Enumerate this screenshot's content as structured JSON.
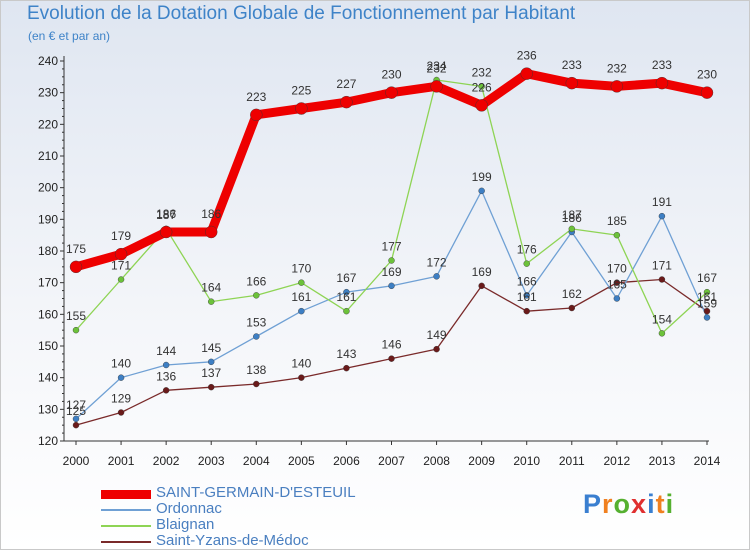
{
  "title": "Evolution de la Dotation Globale de Fonctionnement par Habitant",
  "subtitle": "(en € et par an)",
  "logo": {
    "text": "Proxiti",
    "colors": [
      "#3a7fd0",
      "#f08020",
      "#55b030",
      "#e03030"
    ]
  },
  "chart_data": {
    "type": "line",
    "title": "Evolution de la Dotation Globale de Fonctionnement par Habitant",
    "subtitle": "(en € et par an)",
    "xlabel": "",
    "ylabel": "",
    "x": [
      "2000",
      "2001",
      "2002",
      "2003",
      "2004",
      "2005",
      "2006",
      "2007",
      "2008",
      "2009",
      "2010",
      "2011",
      "2012",
      "2013",
      "2014"
    ],
    "ylim": [
      120,
      240
    ],
    "yticks": [
      "120",
      "130",
      "140",
      "150",
      "160",
      "170",
      "180",
      "190",
      "200",
      "210",
      "220",
      "230",
      "240"
    ],
    "legend_position": "bottom-left",
    "series": [
      {
        "name": "SAINT-GERMAIN-D'ESTEUIL",
        "color": "#ee0000",
        "values": [
          175,
          179,
          186,
          186,
          223,
          225,
          227,
          230,
          232,
          226,
          236,
          233,
          232,
          233,
          230
        ]
      },
      {
        "name": "Ordonnac",
        "color": "#6fa0d4",
        "values": [
          127,
          140,
          144,
          145,
          153,
          161,
          167,
          169,
          172,
          199,
          166,
          186,
          165,
          191,
          159
        ]
      },
      {
        "name": "Blaignan",
        "color": "#8ed454",
        "values": [
          155,
          171,
          187,
          164,
          166,
          170,
          161,
          177,
          234,
          232,
          176,
          187,
          185,
          154,
          167
        ]
      },
      {
        "name": "Saint-Yzans-de-Médoc",
        "color": "#7a2a2a",
        "values": [
          125,
          129,
          136,
          137,
          138,
          140,
          143,
          146,
          149,
          169,
          161,
          162,
          170,
          171,
          161
        ]
      }
    ]
  }
}
